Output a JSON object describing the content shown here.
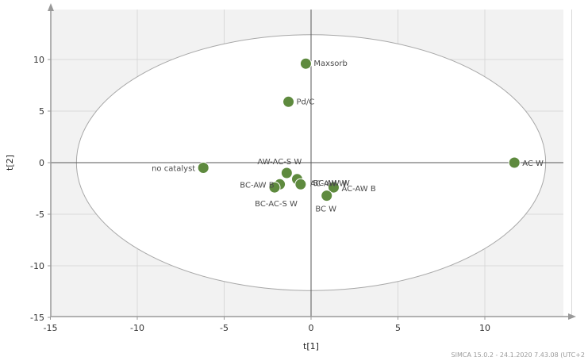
{
  "chart_data": {
    "type": "scatter",
    "xlabel": "t[1]",
    "ylabel": "t[2]",
    "xlim": [
      -15,
      15
    ],
    "ylim": [
      -15,
      15
    ],
    "x_ticks": [
      -15,
      -10,
      -5,
      0,
      5,
      10
    ],
    "y_ticks": [
      -15,
      -10,
      -5,
      0,
      5,
      10
    ],
    "x_tick_labels": [
      "-15",
      "-10",
      "-5",
      "0",
      "5",
      "10"
    ],
    "y_tick_labels": [
      "-15",
      "-10",
      "-5",
      "0",
      "5",
      "10"
    ],
    "grid": true,
    "ellipse": {
      "center": [
        0,
        0
      ],
      "semi_axis_x": 13.5,
      "semi_axis_y": 12.4
    },
    "marker_color": "#5e8a3e",
    "plot_background": "#f2f2f2",
    "points": [
      {
        "label": "Maxsorb",
        "x": -0.3,
        "y": 9.6
      },
      {
        "label": "Pd/C",
        "x": -1.3,
        "y": 5.9
      },
      {
        "label": "no catalyst",
        "x": -6.2,
        "y": -0.5
      },
      {
        "label": "AC W",
        "x": 11.7,
        "y": 0.0
      },
      {
        "label": "AW-AC-S W",
        "x": -1.4,
        "y": -1.0
      },
      {
        "label": "BC-AW W",
        "x": -0.8,
        "y": -1.6
      },
      {
        "label": "AC-AW W",
        "x": -0.6,
        "y": -2.1
      },
      {
        "label": "BC-AW B",
        "x": -1.8,
        "y": -2.1
      },
      {
        "label": "BC-AC-S W",
        "x": -2.1,
        "y": -2.4
      },
      {
        "label": "AC-AW B",
        "x": 1.3,
        "y": -2.4
      },
      {
        "label": "BC W",
        "x": 0.9,
        "y": -3.2
      }
    ]
  },
  "footer": "SIMCA 15.0.2 - 24.1.2020 7.43.08 (UTC+2"
}
